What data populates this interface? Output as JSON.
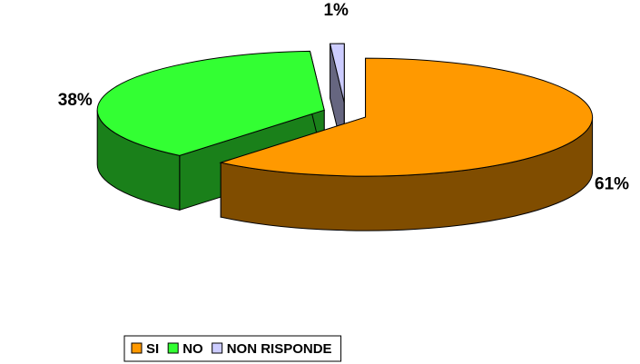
{
  "chart_data": {
    "type": "pie",
    "categories": [
      "SI",
      "NO",
      "NON RISPONDE"
    ],
    "values": [
      61,
      38,
      1
    ],
    "value_labels": [
      "61%",
      "38%",
      "1%"
    ],
    "colors": [
      "#ff9900",
      "#33ff33",
      "#ccccff"
    ],
    "legend": "bottom"
  }
}
